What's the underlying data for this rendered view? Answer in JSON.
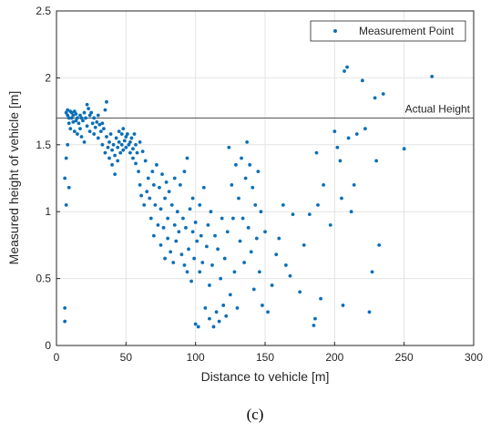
{
  "chart_data": {
    "type": "scatter",
    "panel_label": "(c)",
    "xlabel": "Distance to vehicle [m]",
    "ylabel": "Measured height of vehicle [m]",
    "xlim": [
      0,
      300
    ],
    "ylim": [
      0,
      2.5
    ],
    "xticks": [
      0,
      50,
      100,
      150,
      200,
      250,
      300
    ],
    "yticks": [
      0,
      0.5,
      1,
      1.5,
      2,
      2.5
    ],
    "grid": true,
    "legend_position": "top-right",
    "reference_line": {
      "label": "Actual Height",
      "y": 1.7
    },
    "colors": {
      "points": "#0b6fb8",
      "reference_line": "#555555",
      "grid": "#e4e4e4",
      "axes": "#262626"
    },
    "series": [
      {
        "name": "Measurement Point",
        "marker": "dot",
        "points": [
          [
            7,
            1.74
          ],
          [
            8,
            1.76
          ],
          [
            8,
            1.72
          ],
          [
            9,
            1.7
          ],
          [
            9,
            1.66
          ],
          [
            10,
            1.75
          ],
          [
            10,
            1.62
          ],
          [
            11,
            1.74
          ],
          [
            11,
            1.7
          ],
          [
            12,
            1.72
          ],
          [
            12,
            1.67
          ],
          [
            13,
            1.75
          ],
          [
            13,
            1.6
          ],
          [
            14,
            1.73
          ],
          [
            14,
            1.68
          ],
          [
            15,
            1.7
          ],
          [
            15,
            1.58
          ],
          [
            16,
            1.66
          ],
          [
            17,
            1.72
          ],
          [
            17,
            1.62
          ],
          [
            18,
            1.7
          ],
          [
            18,
            1.56
          ],
          [
            19,
            1.68
          ],
          [
            20,
            1.74
          ],
          [
            20,
            1.52
          ],
          [
            21,
            1.7
          ],
          [
            22,
            1.8
          ],
          [
            22,
            1.64
          ],
          [
            23,
            1.77
          ],
          [
            24,
            1.72
          ],
          [
            24,
            1.6
          ],
          [
            25,
            1.74
          ],
          [
            26,
            1.66
          ],
          [
            27,
            1.7
          ],
          [
            27,
            1.58
          ],
          [
            28,
            1.63
          ],
          [
            29,
            1.67
          ],
          [
            30,
            1.72
          ],
          [
            30,
            1.55
          ],
          [
            31,
            1.65
          ],
          [
            32,
            1.6
          ],
          [
            33,
            1.66
          ],
          [
            33,
            1.5
          ],
          [
            34,
            1.62
          ],
          [
            35,
            1.76
          ],
          [
            35,
            1.44
          ],
          [
            36,
            1.82
          ],
          [
            36,
            1.56
          ],
          [
            37,
            1.48
          ],
          [
            38,
            1.52
          ],
          [
            38,
            1.4
          ],
          [
            39,
            1.58
          ],
          [
            40,
            1.46
          ],
          [
            40,
            1.35
          ],
          [
            41,
            1.5
          ],
          [
            42,
            1.42
          ],
          [
            42,
            1.28
          ],
          [
            43,
            1.55
          ],
          [
            44,
            1.48
          ],
          [
            44,
            1.38
          ],
          [
            45,
            1.6
          ],
          [
            45,
            1.52
          ],
          [
            46,
            1.44
          ],
          [
            47,
            1.58
          ],
          [
            47,
            1.5
          ],
          [
            48,
            1.46
          ],
          [
            48,
            1.62
          ],
          [
            49,
            1.53
          ],
          [
            50,
            1.48
          ],
          [
            50,
            1.56
          ],
          [
            51,
            1.58
          ],
          [
            52,
            1.5
          ],
          [
            53,
            1.52
          ],
          [
            53,
            1.44
          ],
          [
            54,
            1.55
          ],
          [
            55,
            1.47
          ],
          [
            55,
            1.4
          ],
          [
            56,
            1.58
          ],
          [
            57,
            1.5
          ],
          [
            57,
            1.36
          ],
          [
            58,
            1.44
          ],
          [
            59,
            1.3
          ],
          [
            60,
            1.2
          ],
          [
            60,
            1.52
          ],
          [
            61,
            1.12
          ],
          [
            62,
            1.45
          ],
          [
            63,
            1.05
          ],
          [
            64,
            1.38
          ],
          [
            65,
            1.15
          ],
          [
            66,
            1.25
          ],
          [
            67,
            1.1
          ],
          [
            68,
            0.95
          ],
          [
            69,
            1.3
          ],
          [
            70,
            1.2
          ],
          [
            70,
            0.82
          ],
          [
            71,
            1.05
          ],
          [
            72,
            1.35
          ],
          [
            73,
            0.9
          ],
          [
            74,
            1.18
          ],
          [
            75,
            1.02
          ],
          [
            75,
            0.75
          ],
          [
            76,
            1.28
          ],
          [
            77,
            0.88
          ],
          [
            78,
            1.1
          ],
          [
            78,
            0.65
          ],
          [
            79,
            1.22
          ],
          [
            80,
            0.95
          ],
          [
            80,
            0.8
          ],
          [
            81,
            1.15
          ],
          [
            82,
            0.7
          ],
          [
            83,
            1.05
          ],
          [
            84,
            0.62
          ],
          [
            85,
            0.9
          ],
          [
            85,
            1.25
          ],
          [
            86,
            0.78
          ],
          [
            87,
            1.0
          ],
          [
            88,
            0.85
          ],
          [
            89,
            1.2
          ],
          [
            90,
            0.68
          ],
          [
            91,
            0.95
          ],
          [
            92,
            1.3
          ],
          [
            92,
            0.6
          ],
          [
            93,
            0.88
          ],
          [
            94,
            1.4
          ],
          [
            94,
            0.55
          ],
          [
            95,
            0.72
          ],
          [
            96,
            1.02
          ],
          [
            97,
            0.48
          ],
          [
            98,
            0.85
          ],
          [
            98,
            1.1
          ],
          [
            99,
            0.65
          ],
          [
            100,
            0.92
          ],
          [
            100,
            0.16
          ],
          [
            101,
            0.78
          ],
          [
            102,
            0.14
          ],
          [
            103,
            1.05
          ],
          [
            103,
            0.55
          ],
          [
            104,
            0.82
          ],
          [
            105,
            0.62
          ],
          [
            106,
            1.18
          ],
          [
            107,
            0.28
          ],
          [
            108,
            0.74
          ],
          [
            109,
            0.9
          ],
          [
            110,
            0.45
          ],
          [
            110,
            0.2
          ],
          [
            111,
            1.0
          ],
          [
            112,
            0.6
          ],
          [
            113,
            0.14
          ],
          [
            114,
            0.82
          ],
          [
            115,
            0.25
          ],
          [
            116,
            0.72
          ],
          [
            117,
            0.18
          ],
          [
            118,
            0.5
          ],
          [
            119,
            0.95
          ],
          [
            120,
            0.3
          ],
          [
            121,
            0.65
          ],
          [
            122,
            0.22
          ],
          [
            123,
            0.85
          ],
          [
            124,
            1.48
          ],
          [
            125,
            0.38
          ],
          [
            126,
            1.2
          ],
          [
            127,
            0.95
          ],
          [
            128,
            0.55
          ],
          [
            129,
            1.35
          ],
          [
            130,
            0.28
          ],
          [
            131,
            1.1
          ],
          [
            132,
            0.78
          ],
          [
            133,
            1.4
          ],
          [
            134,
            0.95
          ],
          [
            135,
            0.62
          ],
          [
            136,
            1.25
          ],
          [
            137,
            1.52
          ],
          [
            138,
            0.88
          ],
          [
            139,
            1.35
          ],
          [
            140,
            0.7
          ],
          [
            141,
            1.18
          ],
          [
            142,
            0.42
          ],
          [
            143,
            1.05
          ],
          [
            144,
            0.8
          ],
          [
            145,
            1.3
          ],
          [
            146,
            0.55
          ],
          [
            147,
            1.0
          ],
          [
            148,
            0.3
          ],
          [
            150,
            0.85
          ],
          [
            152,
            0.25
          ],
          [
            155,
            0.45
          ],
          [
            158,
            0.68
          ],
          [
            160,
            0.8
          ],
          [
            163,
            1.05
          ],
          [
            165,
            0.6
          ],
          [
            168,
            0.52
          ],
          [
            170,
            0.98
          ],
          [
            175,
            0.4
          ],
          [
            178,
            0.75
          ],
          [
            182,
            0.98
          ],
          [
            185,
            0.15
          ],
          [
            186,
            0.2
          ],
          [
            187,
            1.44
          ],
          [
            188,
            1.05
          ],
          [
            190,
            0.35
          ],
          [
            192,
            1.2
          ],
          [
            197,
            0.9
          ],
          [
            200,
            1.6
          ],
          [
            202,
            1.48
          ],
          [
            204,
            1.38
          ],
          [
            205,
            1.1
          ],
          [
            206,
            0.3
          ],
          [
            207,
            2.05
          ],
          [
            209,
            2.08
          ],
          [
            210,
            1.55
          ],
          [
            212,
            1.0
          ],
          [
            214,
            1.2
          ],
          [
            216,
            1.58
          ],
          [
            220,
            1.98
          ],
          [
            222,
            1.62
          ],
          [
            225,
            0.25
          ],
          [
            227,
            0.55
          ],
          [
            229,
            1.85
          ],
          [
            230,
            1.38
          ],
          [
            232,
            0.75
          ],
          [
            235,
            1.88
          ],
          [
            250,
            1.47
          ],
          [
            270,
            2.01
          ],
          [
            6,
            0.28
          ],
          [
            6,
            0.18
          ],
          [
            6,
            1.25
          ],
          [
            7,
            1.05
          ],
          [
            7,
            1.4
          ],
          [
            8,
            1.5
          ],
          [
            9,
            1.18
          ]
        ]
      }
    ]
  }
}
